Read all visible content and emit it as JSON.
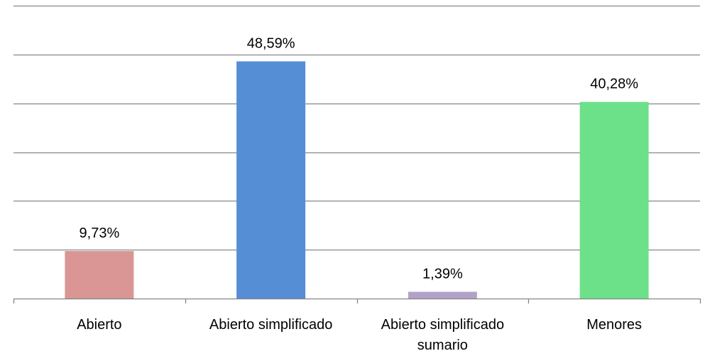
{
  "chart_data": {
    "type": "bar",
    "categories": [
      "Abierto",
      "Abierto simplificado",
      "Abierto simplificado sumario",
      "Menores"
    ],
    "category_label_lines": [
      [
        "Abierto"
      ],
      [
        "Abierto simplificado"
      ],
      [
        "Abierto simplificado",
        "sumario"
      ],
      [
        "Menores"
      ]
    ],
    "values": [
      9.73,
      48.59,
      1.39,
      40.28
    ],
    "data_labels": [
      "9,73%",
      "48,59%",
      "1,39%",
      "40,28%"
    ],
    "colors": [
      "#d99694",
      "#558ed5",
      "#b3a2c7",
      "#6de08a"
    ],
    "ylim": [
      0,
      60
    ],
    "ytick_step": 10,
    "grid": true,
    "legend": false,
    "title": "",
    "xlabel": "",
    "ylabel": ""
  }
}
